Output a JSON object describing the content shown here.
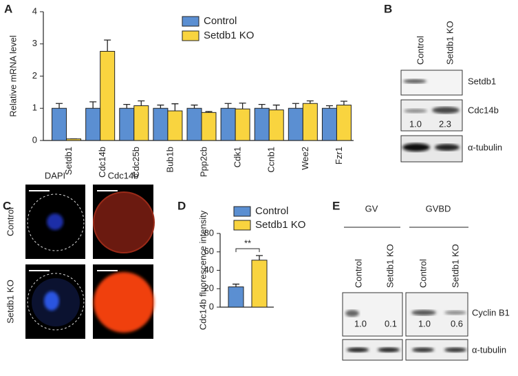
{
  "panel_labels": [
    "A",
    "B",
    "C",
    "D",
    "E"
  ],
  "chart_data": [
    {
      "type": "bar",
      "y_label": "Relative mRNA level",
      "categories": [
        "Setdb1",
        "Cdc14b",
        "Cdc25b",
        "Bub1b",
        "Ppp2cb",
        "Cdk1",
        "Ccnb1",
        "Wee2",
        "Fzr1"
      ],
      "series": [
        {
          "name": "Control",
          "color": "#5b8fd2",
          "values": [
            1,
            1,
            1,
            1,
            1,
            1,
            1,
            1,
            1
          ],
          "errors": [
            0.15,
            0.2,
            0.12,
            0.1,
            0.1,
            0.15,
            0.12,
            0.15,
            0.08
          ]
        },
        {
          "name": "Setdb1 KO",
          "color": "#f9d43f",
          "values": [
            0.05,
            2.77,
            1.08,
            0.92,
            0.87,
            0.98,
            0.95,
            1.15,
            1.1
          ],
          "errors": [
            0,
            0.35,
            0.15,
            0.22,
            0.03,
            0.18,
            0.15,
            0.08,
            0.12
          ]
        }
      ],
      "ylim": [
        0,
        4
      ],
      "yticks": [
        0,
        1,
        2,
        3,
        4
      ]
    },
    {
      "type": "bar",
      "y_label": "Cdc14b fluorescence intensity",
      "series": [
        {
          "name": "Control",
          "color": "#5b8fd2",
          "values": [
            22
          ],
          "errors": [
            3
          ]
        },
        {
          "name": "Setdb1 KO",
          "color": "#f9d43f",
          "values": [
            51
          ],
          "errors": [
            5
          ]
        }
      ],
      "ylim": [
        0,
        80
      ],
      "yticks": [
        0,
        20,
        40,
        60,
        80
      ],
      "annotation": "**"
    }
  ],
  "blot_b": {
    "columns": [
      "Control",
      "Setdb1 KO"
    ],
    "rows": [
      "Setdb1",
      "Cdc14b",
      "α-tubulin"
    ],
    "quant": [
      "1.0",
      "2.3"
    ]
  },
  "imaging_c": {
    "columns": [
      "DAPI",
      "Cdc14b"
    ],
    "rows": [
      "Control",
      "Setdb1 KO"
    ]
  },
  "blot_e": {
    "groups": [
      "GV",
      "GVBD"
    ],
    "columns": [
      "Control",
      "Setdb1 KO",
      "Control",
      "Setdb1 KO"
    ],
    "rows": [
      "Cyclin B1",
      "α-tubulin"
    ],
    "quant": [
      "1.0",
      "0.1",
      "1.0",
      "0.6"
    ]
  }
}
